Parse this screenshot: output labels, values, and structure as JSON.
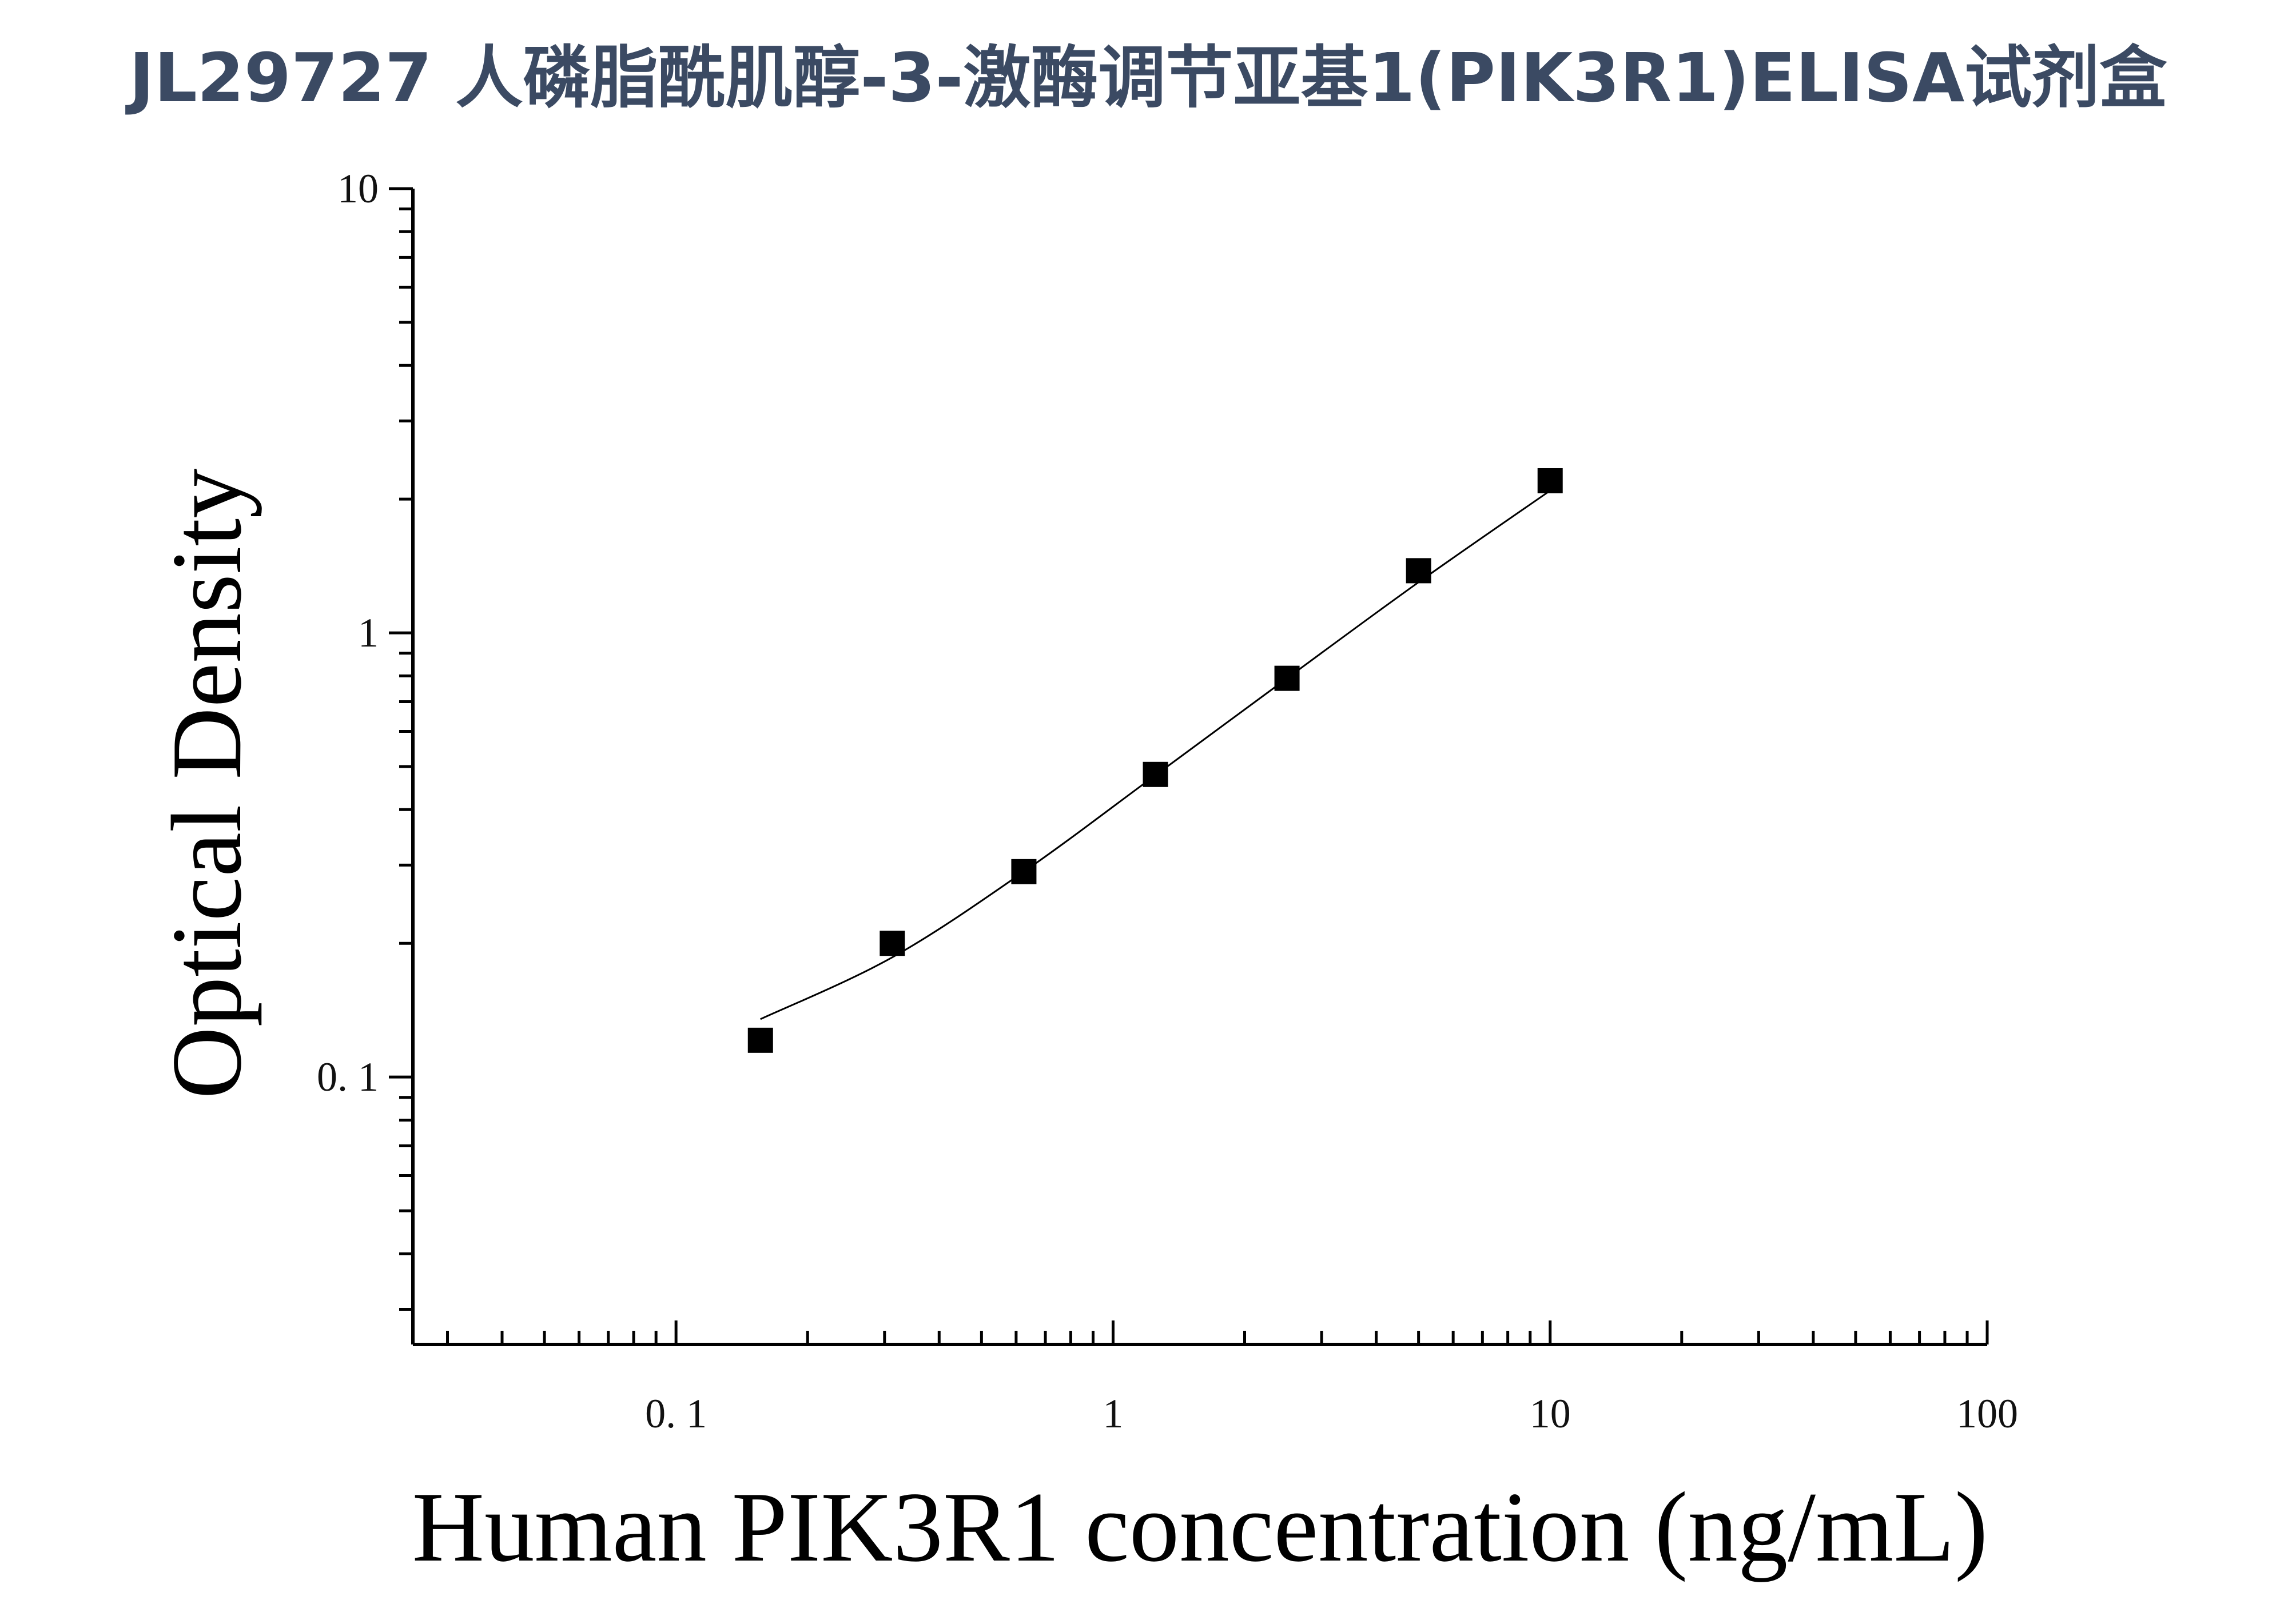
{
  "title": "JL29727 人磷脂酰肌醇-3-激酶调节亚基1(PIK3R1)ELISA试剂盒",
  "chart_data": {
    "type": "scatter",
    "xlabel": "Human PIK3R1 concentration (ng/mL)",
    "ylabel": "Optical Density",
    "x_scale": "log",
    "y_scale": "log",
    "xlim": [
      0.025,
      100
    ],
    "ylim": [
      0.025,
      10
    ],
    "x_ticks": [
      {
        "value": 0.1,
        "label": "0. 1"
      },
      {
        "value": 1,
        "label": "1"
      },
      {
        "value": 10,
        "label": "10"
      },
      {
        "value": 100,
        "label": "100"
      }
    ],
    "y_ticks": [
      {
        "value": 0.1,
        "label": "0. 1"
      },
      {
        "value": 1,
        "label": "1"
      },
      {
        "value": 10,
        "label": "10"
      }
    ],
    "grid": false,
    "series": [
      {
        "marker": "square",
        "color": "#000000",
        "x": [
          0.156,
          0.3125,
          0.625,
          1.25,
          2.5,
          5,
          10
        ],
        "y": [
          0.121,
          0.2,
          0.29,
          0.48,
          0.79,
          1.38,
          2.2
        ]
      }
    ],
    "fit_curve": {
      "color": "#000000",
      "x": [
        0.156,
        0.3125,
        0.625,
        1.25,
        2.5,
        5,
        10
      ],
      "y": [
        0.135,
        0.186,
        0.29,
        0.478,
        0.79,
        1.3,
        2.09
      ]
    }
  }
}
